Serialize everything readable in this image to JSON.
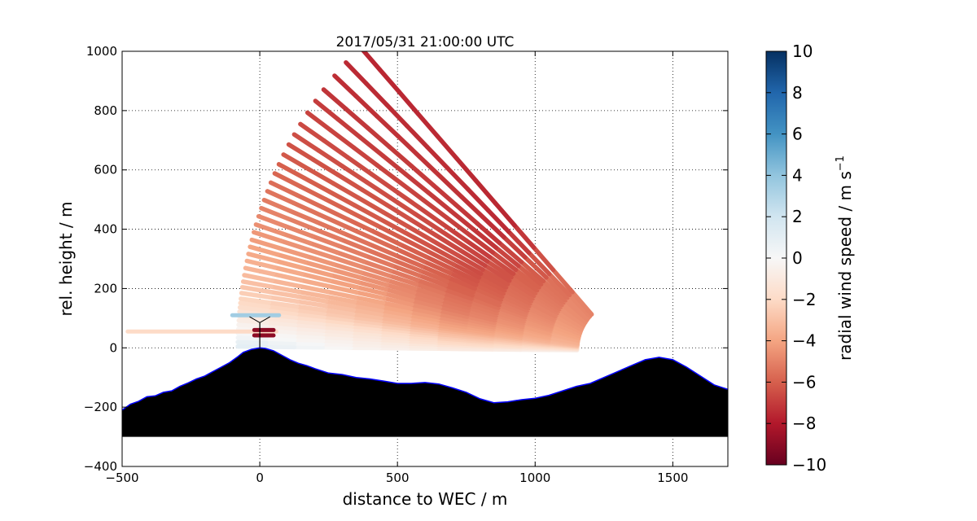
{
  "chart_data": {
    "type": "scatter",
    "title": "2017/05/31 21:00:00 UTC",
    "xlabel": "distance to WEC / m",
    "ylabel": "rel. height / m",
    "xlim": [
      -500,
      1700
    ],
    "ylim": [
      -400,
      1000
    ],
    "x_ticks": [
      -500,
      0,
      500,
      1000,
      1500
    ],
    "y_ticks": [
      -400,
      -200,
      0,
      200,
      400,
      600,
      800,
      1000
    ],
    "grid": true,
    "colorbar": {
      "label": "radial wind speed / m s",
      "label_superscript": "−1",
      "range": [
        -10,
        10
      ],
      "ticks": [
        10,
        8,
        6,
        4,
        2,
        0,
        -2,
        -4,
        -6,
        -8,
        -10
      ],
      "tick_labels": [
        "10",
        "8",
        "6",
        "4",
        "2",
        "0",
        "−2",
        "−4",
        "−6",
        "−8",
        "−10"
      ],
      "colormap": "RdBu"
    },
    "terrain": {
      "fill_color": "#000000",
      "outline_color": "#0000ff",
      "base_height": -300,
      "profile": [
        [
          -500,
          -210
        ],
        [
          -470,
          -190
        ],
        [
          -440,
          -180
        ],
        [
          -410,
          -165
        ],
        [
          -380,
          -162
        ],
        [
          -350,
          -150
        ],
        [
          -320,
          -145
        ],
        [
          -290,
          -130
        ],
        [
          -260,
          -118
        ],
        [
          -230,
          -105
        ],
        [
          -200,
          -95
        ],
        [
          -170,
          -80
        ],
        [
          -140,
          -65
        ],
        [
          -110,
          -50
        ],
        [
          -80,
          -30
        ],
        [
          -60,
          -15
        ],
        [
          -30,
          -5
        ],
        [
          0,
          0
        ],
        [
          20,
          -2
        ],
        [
          50,
          -10
        ],
        [
          80,
          -25
        ],
        [
          110,
          -40
        ],
        [
          140,
          -52
        ],
        [
          170,
          -60
        ],
        [
          200,
          -70
        ],
        [
          250,
          -85
        ],
        [
          300,
          -90
        ],
        [
          350,
          -100
        ],
        [
          400,
          -105
        ],
        [
          450,
          -112
        ],
        [
          500,
          -120
        ],
        [
          550,
          -120
        ],
        [
          600,
          -117
        ],
        [
          650,
          -122
        ],
        [
          700,
          -135
        ],
        [
          750,
          -150
        ],
        [
          800,
          -172
        ],
        [
          850,
          -185
        ],
        [
          900,
          -182
        ],
        [
          950,
          -175
        ],
        [
          1000,
          -170
        ],
        [
          1050,
          -160
        ],
        [
          1100,
          -145
        ],
        [
          1150,
          -130
        ],
        [
          1200,
          -120
        ],
        [
          1250,
          -100
        ],
        [
          1300,
          -80
        ],
        [
          1350,
          -60
        ],
        [
          1400,
          -40
        ],
        [
          1450,
          -32
        ],
        [
          1500,
          -40
        ],
        [
          1550,
          -65
        ],
        [
          1600,
          -95
        ],
        [
          1650,
          -125
        ],
        [
          1700,
          -140
        ]
      ]
    },
    "turbine": {
      "x": 0,
      "hub_height": 85,
      "rotor_radius": 40,
      "color": "#000000"
    },
    "scan": {
      "origin": [
        1320,
        -10
      ],
      "elevation_angles_deg": [
        0.6,
        1.2,
        1.8,
        2.4,
        3.0,
        3.6,
        4.2,
        4.8,
        5.4,
        6.0,
        6.6,
        7.2,
        8.0,
        8.8,
        9.6,
        10.5,
        11.5,
        12.5,
        13.5,
        14.5,
        15.5,
        16.6,
        17.7,
        18.9,
        20.1,
        21.3,
        22.6,
        23.9,
        25.3,
        26.7,
        28.2,
        29.8,
        31.4,
        33.1,
        35.0,
        37.0,
        39.0,
        41.5,
        44.0,
        47.0
      ],
      "range_max_m": 1400,
      "radial_speed_ms": [
        [
          -0.5,
          -1.0,
          -0.3,
          1.0
        ],
        [
          -0.8,
          -1.2,
          -0.5,
          0.8
        ],
        [
          -1.2,
          -1.6,
          -0.6,
          0.3
        ],
        [
          -1.5,
          -2.0,
          -0.8,
          0.1
        ],
        [
          -1.8,
          -2.2,
          -1.0,
          -0.2
        ],
        [
          -2.0,
          -2.5,
          -1.2,
          -0.4
        ],
        [
          -2.3,
          -2.7,
          -1.5,
          -0.8
        ],
        [
          -2.5,
          -3.0,
          -1.8,
          -1.0
        ],
        [
          -2.8,
          -3.2,
          -2.2,
          -1.4
        ],
        [
          -3.0,
          -3.5,
          -2.5,
          -1.8
        ],
        [
          -3.2,
          -3.8,
          -2.8,
          -2.0
        ],
        [
          -3.3,
          -4.0,
          -3.0,
          -2.2
        ],
        [
          -3.4,
          -4.2,
          -3.2,
          -2.5
        ],
        [
          -3.5,
          -4.4,
          -3.4,
          -2.8
        ],
        [
          -3.6,
          -4.6,
          -3.6,
          -3.0
        ],
        [
          -3.6,
          -4.8,
          -3.8,
          -3.2
        ],
        [
          -3.7,
          -5.0,
          -4.0,
          -3.4
        ],
        [
          -3.8,
          -5.2,
          -4.2,
          -3.6
        ],
        [
          -3.8,
          -5.3,
          -4.4,
          -3.8
        ],
        [
          -3.9,
          -5.4,
          -4.5,
          -4.0
        ],
        [
          -4.0,
          -5.5,
          -4.6,
          -4.2
        ],
        [
          -4.0,
          -5.6,
          -4.8,
          -4.4
        ],
        [
          -4.1,
          -5.8,
          -5.0,
          -4.6
        ],
        [
          -4.1,
          -6.0,
          -5.2,
          -4.8
        ],
        [
          -4.2,
          -6.0,
          -5.4,
          -5.0
        ],
        [
          -4.2,
          -6.2,
          -5.5,
          -5.2
        ],
        [
          -4.3,
          -6.3,
          -5.6,
          -5.4
        ],
        [
          -4.3,
          -6.4,
          -5.8,
          -5.6
        ],
        [
          -4.4,
          -6.5,
          -6.0,
          -5.8
        ],
        [
          -4.4,
          -6.6,
          -6.2,
          -6.0
        ],
        [
          -4.5,
          -6.6,
          -6.3,
          -6.2
        ],
        [
          -4.5,
          -6.8,
          -6.4,
          -6.4
        ],
        [
          -4.6,
          -6.8,
          -6.5,
          -6.5
        ],
        [
          -4.6,
          -7.0,
          -6.6,
          -6.6
        ],
        [
          -4.7,
          -7.0,
          -6.8,
          -6.8
        ],
        [
          -4.7,
          -7.2,
          -7.0,
          -7.0
        ],
        [
          -4.8,
          -7.2,
          -7.0,
          -7.2
        ],
        [
          -4.8,
          -7.4,
          -7.2,
          -7.4
        ],
        [
          -4.9,
          -7.5,
          -7.4,
          -7.5
        ],
        [
          -5.0,
          -7.6,
          -7.5,
          -7.6
        ]
      ]
    },
    "near_turbine_beams": [
      {
        "y": 110,
        "x_start": -100,
        "x_end": 70,
        "speed": 3.5
      },
      {
        "y": 55,
        "x_start": -480,
        "x_end": 60,
        "speed": -2.0
      },
      {
        "y": 42,
        "x_start": -20,
        "x_end": 50,
        "speed": -9.0
      },
      {
        "y": 60,
        "x_start": -20,
        "x_end": 50,
        "speed": -9.0
      }
    ]
  }
}
